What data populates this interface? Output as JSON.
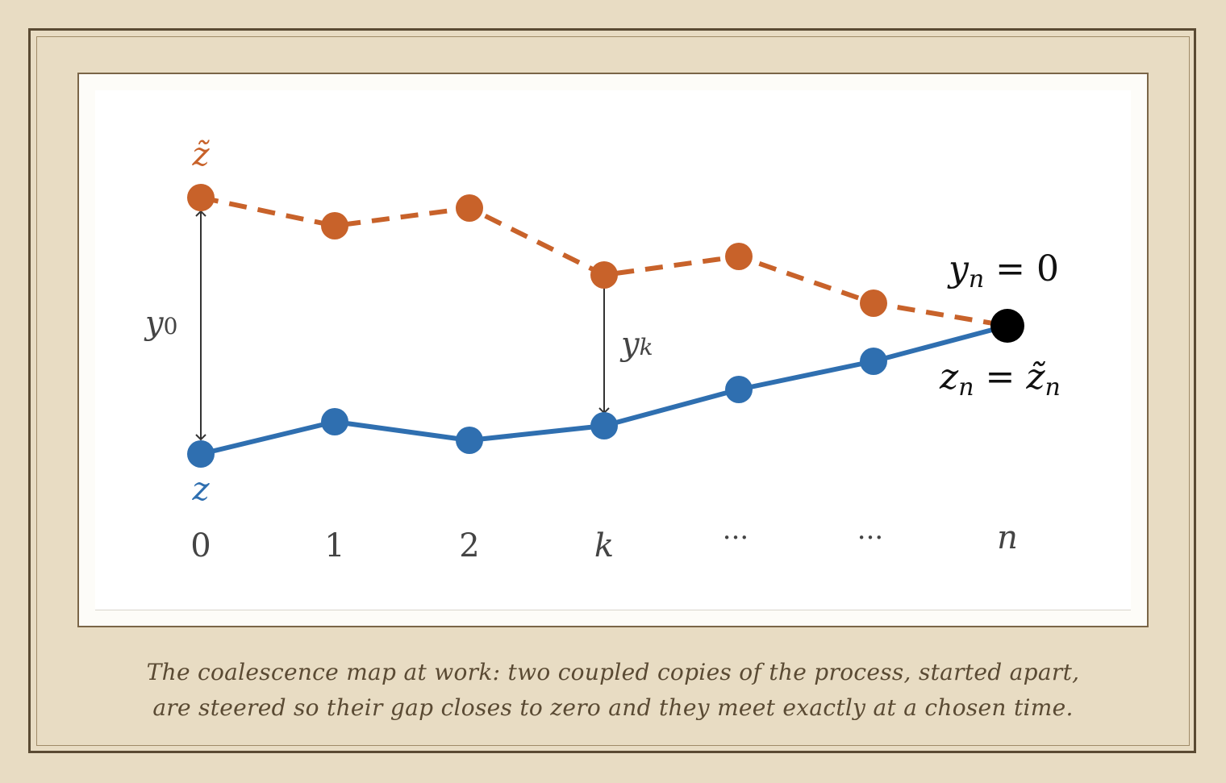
{
  "diagram": {
    "x_ticks": [
      "0",
      "1",
      "2",
      "k",
      "···",
      "···",
      "n"
    ],
    "tilde_series_label": "z̃",
    "base_series_label": "z",
    "gap_label_start": "y",
    "gap_label_start_sub": "0",
    "gap_label_mid": "y",
    "gap_label_mid_sub": "k",
    "meet_top_label_var": "y",
    "meet_top_label_sub": "n",
    "meet_top_label_rest": " = 0",
    "meet_bottom_label_var": "z",
    "meet_bottom_label_sub": "n",
    "meet_bottom_label_eq": " = ",
    "meet_bottom_label_var2": "z̃",
    "meet_bottom_label_sub2": "n",
    "colors": {
      "tilde": "#c8622a",
      "base": "#2f6fb0",
      "meet": "#000000",
      "arrow": "#333333",
      "tick_text": "#444444"
    }
  },
  "caption": {
    "line1": "The coalescence map at work: two coupled copies of the process, started apart,",
    "line2": "are steered so their gap closes to zero and they meet exactly at a chosen time."
  }
}
